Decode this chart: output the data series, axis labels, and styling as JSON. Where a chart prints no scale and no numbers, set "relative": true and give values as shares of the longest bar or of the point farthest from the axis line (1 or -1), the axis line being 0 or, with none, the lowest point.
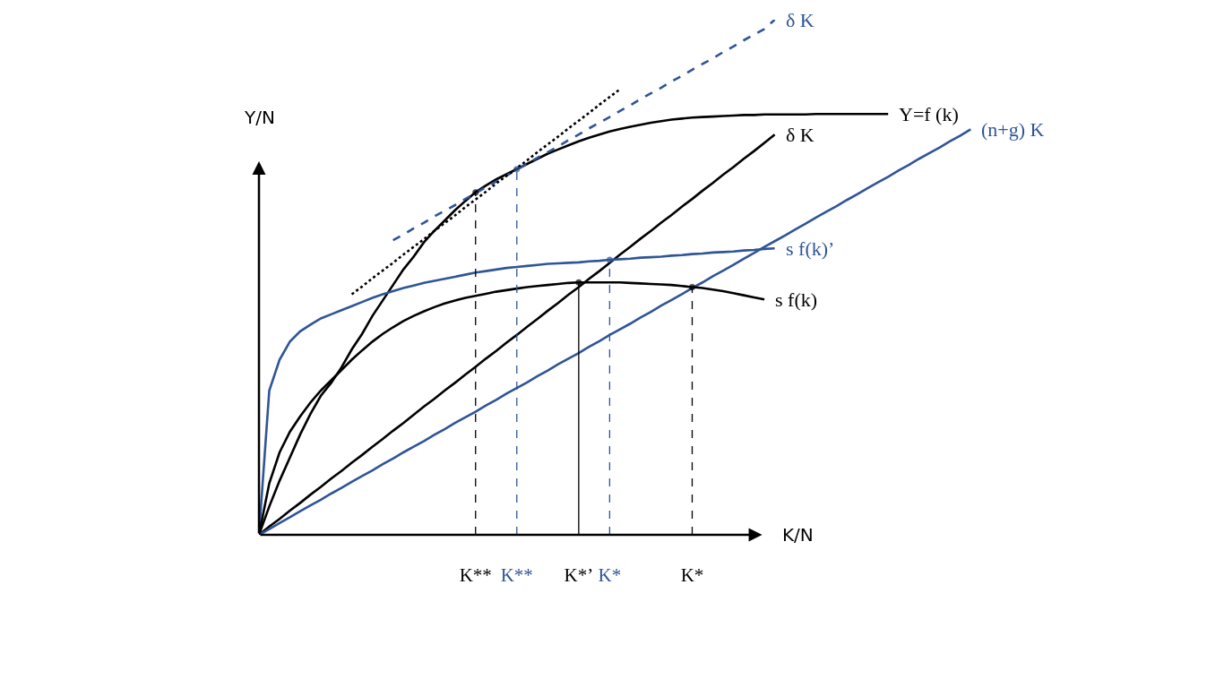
{
  "chart_data": {
    "type": "line",
    "relative": true,
    "xlabel": "K/N",
    "ylabel": "Y/N",
    "tick_labels": "x",
    "grid": false,
    "legend": false,
    "marker": "none",
    "line_style": "solid",
    "categories": [
      null,
      null,
      null,
      null,
      null,
      null,
      null,
      null,
      null,
      null,
      null,
      null,
      null,
      null,
      null,
      null,
      null,
      null,
      null,
      null,
      null,
      "K**",
      null,
      null,
      null,
      "K**",
      null,
      null,
      null,
      null,
      null,
      "K*’",
      null,
      null,
      "K*",
      null,
      null,
      null,
      null,
      null,
      null,
      null,
      "K*",
      null,
      null,
      null,
      null,
      null,
      null,
      null,
      null,
      null,
      null,
      null,
      null,
      null,
      null,
      null,
      null,
      null,
      null,
      null,
      null,
      null,
      null,
      null,
      null,
      null,
      null,
      null
    ],
    "series": [
      {
        "name": "Y=f (k)",
        "color": "#000000",
        "values": [
          0,
          0.055,
          0.105,
          0.15,
          0.195,
          0.235,
          0.27,
          0.295,
          0.325,
          0.36,
          0.39,
          0.425,
          0.455,
          0.485,
          0.515,
          0.54,
          0.568,
          0.59,
          0.61,
          0.63,
          0.648,
          0.665,
          0.678,
          0.69,
          0.7,
          0.71,
          0.72,
          0.73,
          0.74,
          0.748,
          0.756,
          0.764,
          0.771,
          0.777,
          0.783,
          0.788,
          0.792,
          0.796,
          0.8,
          0.803,
          0.806,
          0.808,
          0.81,
          0.811,
          0.812,
          0.813,
          0.814,
          0.815,
          0.815,
          0.816,
          0.816,
          0.816,
          0.816,
          0.816,
          0.817,
          0.817,
          0.817,
          0.817,
          0.817,
          0.817,
          0.817,
          0.817,
          null,
          null,
          null,
          null,
          null,
          null,
          null,
          null
        ]
      },
      {
        "name": "δ K",
        "color": "#2f5597",
        "line_style": "dashed",
        "values": [
          null,
          null,
          null,
          null,
          null,
          null,
          null,
          null,
          null,
          null,
          null,
          null,
          null,
          0.572,
          0.583,
          0.595,
          0.606,
          0.618,
          0.629,
          0.64,
          0.652,
          0.663,
          0.675,
          0.686,
          0.697,
          0.709,
          0.72,
          0.732,
          0.743,
          0.754,
          0.766,
          0.777,
          0.789,
          0.8,
          0.811,
          0.823,
          0.834,
          0.846,
          0.857,
          0.868,
          0.88,
          0.891,
          0.903,
          0.914,
          0.925,
          0.937,
          0.948,
          0.96,
          0.971,
          0.982,
          1.0,
          null,
          null,
          null,
          null,
          null,
          null,
          null,
          null,
          null,
          null,
          null,
          null,
          null,
          null,
          null,
          null,
          null,
          null,
          null
        ]
      },
      {
        "color": "#000000",
        "line_style": "dotted",
        "values": [
          null,
          null,
          null,
          null,
          null,
          null,
          null,
          null,
          null,
          0.467,
          0.482,
          0.498,
          0.513,
          0.528,
          0.544,
          0.559,
          0.574,
          0.59,
          0.605,
          0.62,
          0.636,
          0.651,
          0.666,
          0.682,
          0.697,
          0.712,
          0.727,
          0.743,
          0.758,
          0.773,
          0.789,
          0.804,
          0.819,
          0.835,
          0.85,
          0.865,
          null,
          null,
          null,
          null,
          null,
          null,
          null,
          null,
          null,
          null,
          null,
          null,
          null,
          null,
          null,
          null,
          null,
          null,
          null,
          null,
          null,
          null,
          null,
          null,
          null,
          null,
          null,
          null,
          null,
          null,
          null,
          null,
          null,
          null
        ]
      },
      {
        "name": "δ K",
        "color": "#000000",
        "values": [
          0,
          0.016,
          0.031,
          0.047,
          0.062,
          0.078,
          0.093,
          0.109,
          0.124,
          0.14,
          0.155,
          0.171,
          0.186,
          0.202,
          0.217,
          0.233,
          0.249,
          0.264,
          0.28,
          0.295,
          0.311,
          0.326,
          0.342,
          0.357,
          0.373,
          0.388,
          0.404,
          0.419,
          0.435,
          0.45,
          0.466,
          0.481,
          0.497,
          0.512,
          0.528,
          0.544,
          0.559,
          0.575,
          0.59,
          0.606,
          0.621,
          0.637,
          0.652,
          0.668,
          0.683,
          0.699,
          0.714,
          0.73,
          0.745,
          0.761,
          0.777,
          null,
          null,
          null,
          null,
          null,
          null,
          null,
          null,
          null,
          null,
          null,
          null,
          null,
          null,
          null,
          null,
          null,
          null,
          null
        ]
      },
      {
        "name": "(n+g) K",
        "color": "#2f5597",
        "values": [
          0,
          0.011,
          0.023,
          0.034,
          0.046,
          0.057,
          0.068,
          0.08,
          0.091,
          0.103,
          0.114,
          0.125,
          0.137,
          0.148,
          0.16,
          0.171,
          0.182,
          0.194,
          0.205,
          0.217,
          0.228,
          0.239,
          0.251,
          0.262,
          0.274,
          0.285,
          0.296,
          0.308,
          0.319,
          0.331,
          0.342,
          0.353,
          0.365,
          0.376,
          0.388,
          0.399,
          0.41,
          0.422,
          0.433,
          0.445,
          0.456,
          0.467,
          0.479,
          0.49,
          0.502,
          0.513,
          0.524,
          0.536,
          0.547,
          0.559,
          0.57,
          0.581,
          0.593,
          0.604,
          0.616,
          0.627,
          0.638,
          0.65,
          0.661,
          0.673,
          0.684,
          0.695,
          0.707,
          0.718,
          0.73,
          0.741,
          0.752,
          0.764,
          0.775,
          0.787
        ]
      },
      {
        "name": "s f(k)’",
        "color": "#2f5597",
        "values": [
          0,
          0.28,
          0.34,
          0.375,
          0.395,
          0.408,
          0.42,
          0.428,
          0.436,
          0.444,
          0.452,
          0.46,
          0.467,
          0.473,
          0.479,
          0.484,
          0.489,
          0.493,
          0.497,
          0.501,
          0.505,
          0.509,
          0.512,
          0.515,
          0.518,
          0.52,
          0.522,
          0.524,
          0.526,
          0.527,
          0.528,
          0.529,
          0.531,
          0.532,
          0.534,
          0.535,
          0.536,
          0.538,
          0.539,
          0.54,
          0.542,
          0.543,
          0.545,
          0.546,
          0.548,
          0.549,
          0.55,
          0.552,
          0.553,
          0.555,
          0.556,
          null,
          null,
          null,
          null,
          null,
          null,
          null,
          null,
          null,
          null,
          null,
          null,
          null,
          null,
          null,
          null,
          null,
          null,
          null
        ]
      },
      {
        "name": "s f(k)",
        "color": "#000000",
        "values": [
          0,
          0.1,
          0.16,
          0.2,
          0.23,
          0.257,
          0.28,
          0.3,
          0.32,
          0.34,
          0.358,
          0.375,
          0.39,
          0.403,
          0.415,
          0.425,
          0.434,
          0.442,
          0.449,
          0.455,
          0.46,
          0.464,
          0.468,
          0.472,
          0.475,
          0.478,
          0.481,
          0.483,
          0.485,
          0.487,
          0.489,
          0.49,
          0.49,
          0.49,
          0.49,
          0.49,
          0.489,
          0.488,
          0.487,
          0.486,
          0.485,
          0.483,
          0.481,
          0.479,
          0.476,
          0.473,
          0.469,
          0.465,
          0.461,
          0.457,
          null,
          null,
          null,
          null,
          null,
          null,
          null,
          null,
          null,
          null,
          null,
          null,
          null,
          null,
          null,
          null,
          null,
          null,
          null,
          null
        ]
      },
      {
        "type": "lollipop",
        "line_style": "dashed",
        "values": [
          null,
          null,
          null,
          null,
          null,
          null,
          null,
          null,
          null,
          null,
          null,
          null,
          null,
          null,
          null,
          null,
          null,
          null,
          null,
          null,
          null,
          0.665,
          null,
          null,
          null,
          0.71,
          null,
          null,
          null,
          null,
          null,
          null,
          null,
          null,
          0.534,
          null,
          null,
          null,
          null,
          null,
          null,
          null,
          0.481,
          null,
          null,
          null,
          null,
          null,
          null,
          null,
          null,
          null,
          null,
          null,
          null,
          null,
          null,
          null,
          null,
          null,
          null,
          null,
          null,
          null,
          null,
          null,
          null,
          null,
          null,
          null
        ],
        "colors": [
          null,
          null,
          null,
          null,
          null,
          null,
          null,
          null,
          null,
          null,
          null,
          null,
          null,
          null,
          null,
          null,
          null,
          null,
          null,
          null,
          null,
          "#000000",
          null,
          null,
          null,
          "#2f5597",
          null,
          null,
          null,
          null,
          null,
          null,
          null,
          null,
          "#2f5597",
          null,
          null,
          null,
          null,
          null,
          null,
          null,
          "#000000",
          null,
          null,
          null,
          null,
          null,
          null,
          null,
          null,
          null,
          null,
          null,
          null,
          null,
          null,
          null,
          null,
          null,
          null,
          null,
          null,
          null,
          null,
          null,
          null,
          null,
          null,
          null
        ]
      },
      {
        "type": "lollipop",
        "color": "#000000",
        "values": [
          null,
          null,
          null,
          null,
          null,
          null,
          null,
          null,
          null,
          null,
          null,
          null,
          null,
          null,
          null,
          null,
          null,
          null,
          null,
          null,
          null,
          null,
          null,
          null,
          null,
          null,
          null,
          null,
          null,
          null,
          null,
          0.49,
          null,
          null,
          null,
          null,
          null,
          null,
          null,
          null,
          null,
          null,
          null,
          null,
          null,
          null,
          null,
          null,
          null,
          null,
          null,
          null,
          null,
          null,
          null,
          null,
          null,
          null,
          null,
          null,
          null,
          null,
          null,
          null,
          null,
          null,
          null,
          null,
          null,
          null
        ]
      }
    ]
  }
}
